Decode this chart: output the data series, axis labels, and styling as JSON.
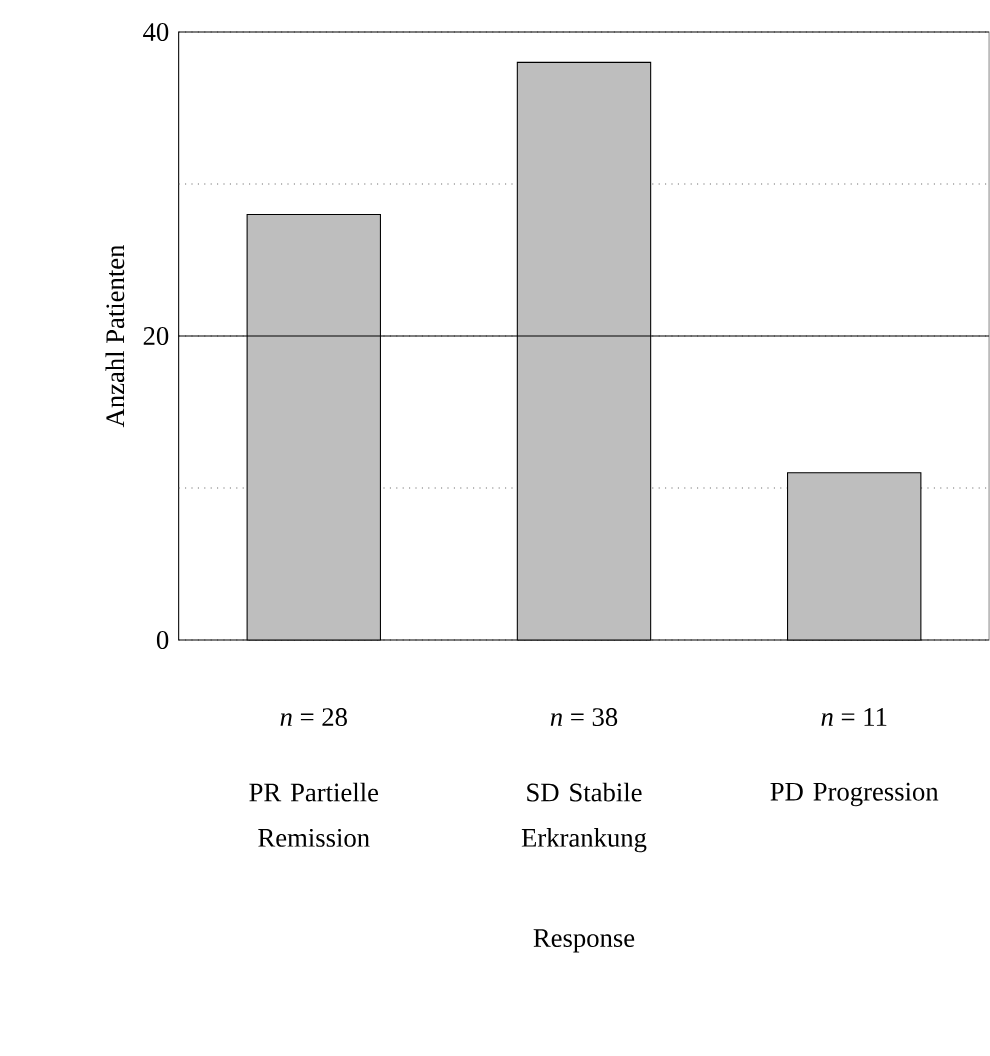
{
  "chart_data": {
    "type": "bar",
    "xlabel": "Response",
    "ylabel": "Anzahl Patienten",
    "categories": [
      "PR Partielle Remission",
      "SD Stabile Erkrankung",
      "PD Progression"
    ],
    "values": [
      28,
      38,
      11
    ],
    "value_labels": [
      "*n* = 28",
      "*n* = 38",
      "*n* = 11"
    ],
    "color": "#bebebe",
    "ylim": [
      0,
      40
    ],
    "yticks": [
      0,
      {
        "value": 10,
        "label": null
      },
      20,
      {
        "value": 30,
        "label": null
      },
      40
    ],
    "ref_lines": [
      {
        "axis": "y",
        "value": 20,
        "line_style": "solid"
      }
    ],
    "grid": "y"
  }
}
